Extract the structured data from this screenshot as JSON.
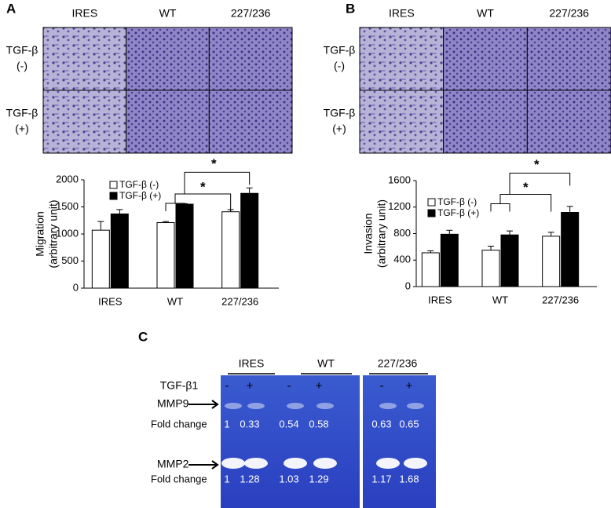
{
  "panel_labels": [
    "A",
    "B",
    "C"
  ],
  "image_panels": [
    {
      "columns": [
        "IRES",
        "WT",
        "227/236"
      ],
      "rows": [
        [
          "TGF-β",
          "(-)"
        ],
        [
          "TGF-β",
          "(+)"
        ]
      ]
    },
    {
      "columns": [
        "IRES",
        "WT",
        "227/236"
      ],
      "rows": [
        [
          "TGF-β",
          "(-)"
        ],
        [
          "TGF-β",
          "(+)"
        ]
      ]
    }
  ],
  "chart_data": [
    {
      "type": "bar",
      "ylabel": [
        "Migration",
        "(arbitrary unit)"
      ],
      "categories": [
        "IRES",
        "WT",
        "227/236"
      ],
      "series": [
        {
          "name": "TGF-β (-)",
          "color": "#ffffff",
          "values": [
            1070,
            1210,
            1410
          ],
          "errors": [
            160,
            20,
            40
          ]
        },
        {
          "name": "TGF-β (+)",
          "color": "#000000",
          "values": [
            1370,
            1550,
            1750
          ],
          "errors": [
            80,
            10,
            100
          ]
        }
      ],
      "ylim": [
        0,
        2000
      ],
      "yticks": [
        0,
        500,
        1000,
        1500,
        2000
      ],
      "annotations": [
        "*",
        "*"
      ]
    },
    {
      "type": "bar",
      "ylabel": [
        "Invasion",
        "(arbitrary unit)"
      ],
      "categories": [
        "IRES",
        "WT",
        "227/236"
      ],
      "series": [
        {
          "name": "TGF-β (-)",
          "color": "#ffffff",
          "values": [
            510,
            550,
            760
          ],
          "errors": [
            30,
            60,
            60
          ]
        },
        {
          "name": "TGF-β (+)",
          "color": "#000000",
          "values": [
            790,
            780,
            1120
          ],
          "errors": [
            60,
            60,
            90
          ]
        }
      ],
      "ylim": [
        0,
        1600
      ],
      "yticks": [
        0,
        400,
        800,
        1200,
        1600
      ],
      "annotations": [
        "*",
        "*"
      ]
    }
  ],
  "gel": {
    "groups": [
      "IRES",
      "WT",
      "227/236"
    ],
    "treatment_label": "TGF-β1",
    "treatments": [
      "-",
      "+",
      "-",
      "+",
      "-",
      "+"
    ],
    "bands": [
      {
        "name": "MMP9",
        "fold_label": "Fold change",
        "fold_changes": [
          1,
          0.33,
          0.54,
          0.58,
          0.63,
          0.65
        ]
      },
      {
        "name": "MMP2",
        "fold_label": "Fold change",
        "fold_changes": [
          1,
          1.28,
          1.03,
          1.29,
          1.17,
          1.68
        ]
      }
    ]
  }
}
